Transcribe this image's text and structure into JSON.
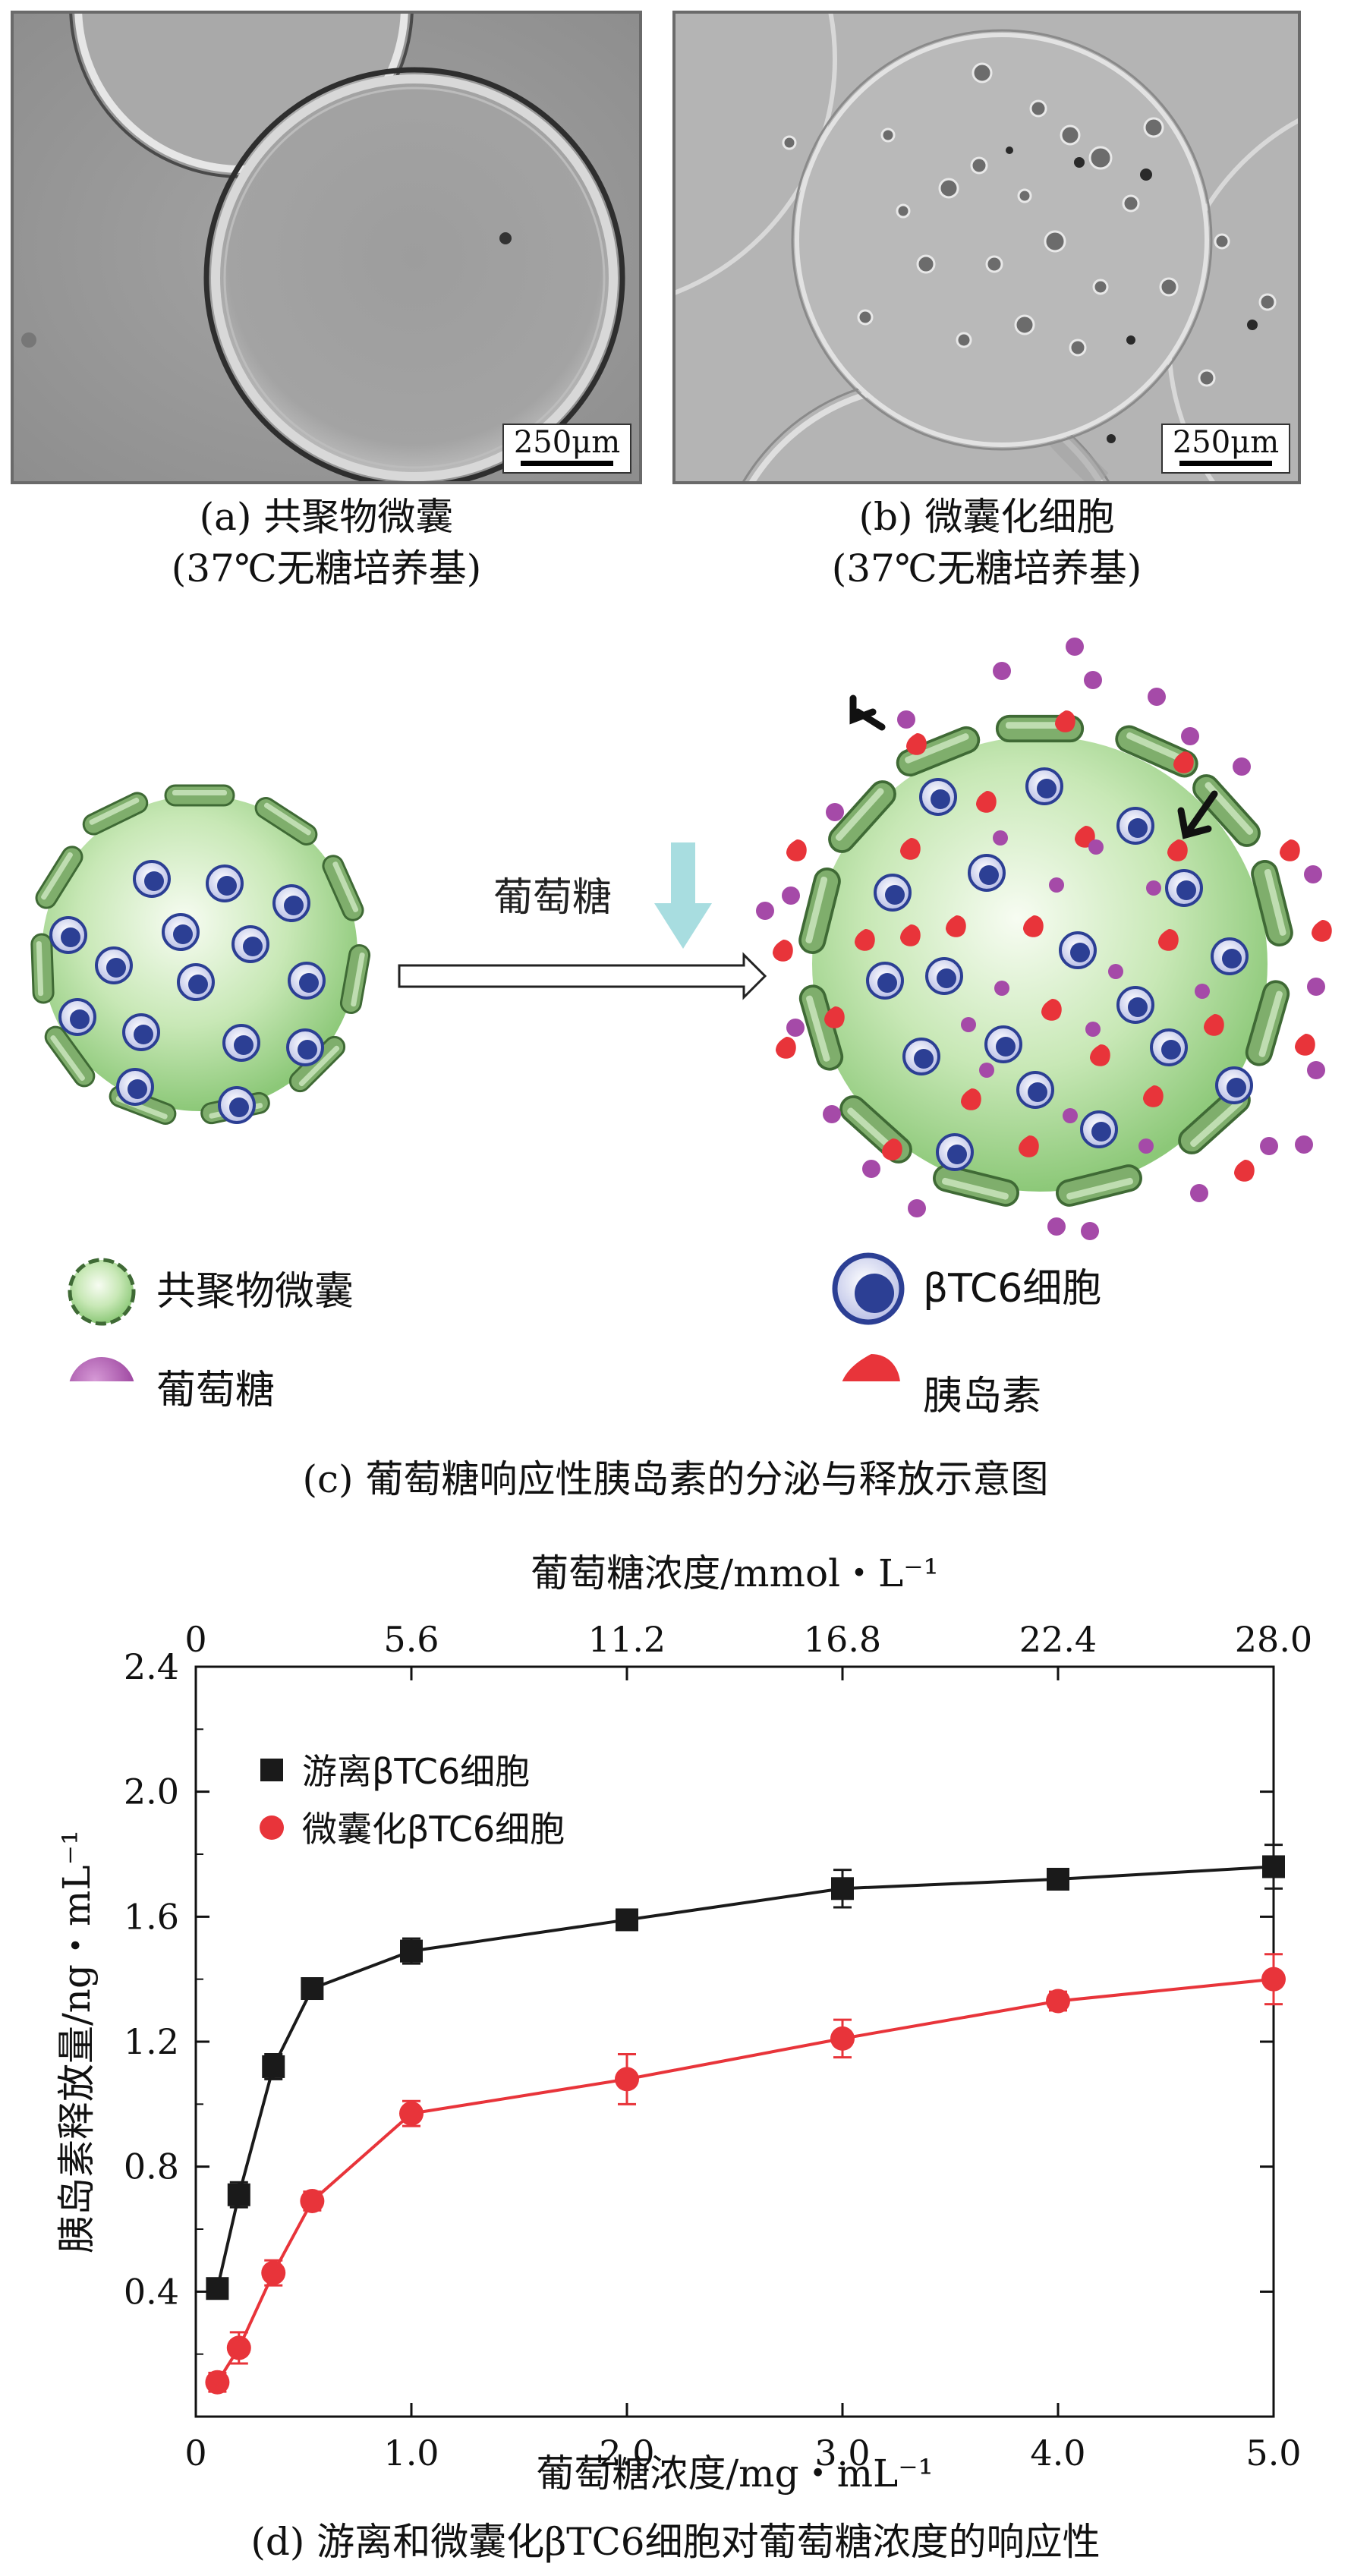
{
  "panel_a": {
    "scale_label": "250μm",
    "caption_line1": "(a) 共聚物微囊",
    "caption_line2": "(37℃无糖培养基)"
  },
  "panel_b": {
    "scale_label": "250μm",
    "caption_line1": "(b) 微囊化细胞",
    "caption_line2": "(37℃无糖培养基)"
  },
  "panel_c": {
    "arrow_label": "葡萄糖",
    "legend": {
      "microcapsule": "共聚物微囊",
      "cell": "βTC6细胞",
      "glucose": "葡萄糖",
      "insulin": "胰岛素"
    },
    "caption": "(c) 葡萄糖响应性胰岛素的分泌与释放示意图",
    "colors": {
      "capsule_fill": "#a8d890",
      "capsule_wall": "#5e8a50",
      "cell_blue": "#2c3f94",
      "glucose_purple": "#a54aa8",
      "insulin_red": "#e8343a",
      "arrow_cyan": "#a8dde0"
    }
  },
  "panel_d": {
    "caption": "(d) 游离和微囊化βTC6细胞对葡萄糖浓度的响应性",
    "chart_data": {
      "type": "line",
      "xlabel": "葡萄糖浓度/mg・mL⁻¹",
      "x2label": "葡萄糖浓度/mmol・L⁻¹",
      "ylabel": "胰岛素释放量/ng・mL⁻¹",
      "xlim": [
        0,
        5
      ],
      "ylim": [
        0,
        2.4
      ],
      "x_ticks": [
        "0",
        "1.0",
        "2.0",
        "3.0",
        "4.0",
        "5.0"
      ],
      "x2_ticks": [
        "0",
        "5.6",
        "11.2",
        "16.8",
        "22.4",
        "28.0"
      ],
      "y_ticks": [
        "0.4",
        "0.8",
        "1.2",
        "1.6",
        "2.0",
        "2.4"
      ],
      "legend_position": "top-left",
      "series": [
        {
          "name": "游离βTC6细胞",
          "color": "#1a1a1a",
          "marker": "square",
          "x": [
            0.1,
            0.2,
            0.36,
            0.54,
            1.0,
            2.0,
            3.0,
            4.0,
            5.0
          ],
          "y": [
            0.41,
            0.71,
            1.12,
            1.37,
            1.49,
            1.59,
            1.69,
            1.72,
            1.76
          ],
          "err": [
            0.03,
            0.04,
            0.04,
            0.03,
            0.04,
            0.03,
            0.06,
            0.03,
            0.07
          ]
        },
        {
          "name": "微囊化βTC6细胞",
          "color": "#e8343a",
          "marker": "circle",
          "x": [
            0.1,
            0.2,
            0.36,
            0.54,
            1.0,
            2.0,
            3.0,
            4.0,
            5.0
          ],
          "y": [
            0.11,
            0.22,
            0.46,
            0.69,
            0.97,
            1.08,
            1.21,
            1.33,
            1.4
          ],
          "err": [
            0.03,
            0.05,
            0.04,
            0.03,
            0.04,
            0.08,
            0.06,
            0.03,
            0.08
          ]
        }
      ]
    }
  }
}
